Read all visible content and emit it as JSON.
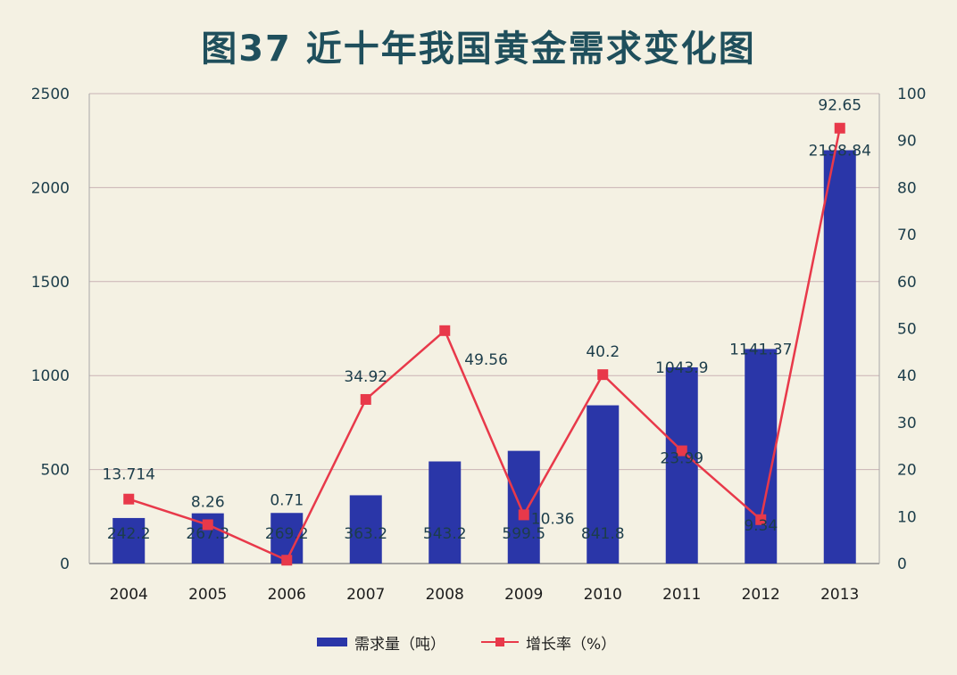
{
  "chart_data": {
    "type": "bar",
    "title": "图37  近十年我国黄金需求变化图",
    "categories": [
      "2004",
      "2005",
      "2006",
      "2007",
      "2008",
      "2009",
      "2010",
      "2011",
      "2012",
      "2013"
    ],
    "series": [
      {
        "name": "需求量（吨）",
        "type": "bar",
        "axis": "left",
        "values": [
          242.2,
          267.3,
          269.2,
          363.2,
          543.2,
          599.5,
          841.8,
          1043.9,
          1141.37,
          2198.84
        ],
        "labels": [
          "242.2",
          "267.3",
          "269.2",
          "363.2",
          "543.2",
          "599.5",
          "841.8",
          "1043.9",
          "1141.37",
          "2198.84"
        ],
        "color": "#2a36a8"
      },
      {
        "name": "增长率（%）",
        "type": "line",
        "axis": "right",
        "values": [
          13.714,
          8.26,
          0.71,
          34.92,
          49.56,
          10.36,
          40.2,
          23.99,
          9.34,
          92.65
        ],
        "labels": [
          "13.714",
          "8.26",
          "0.71",
          "34.92",
          "49.56",
          "10.36",
          "40.2",
          "23.99",
          "9.34",
          "92.65"
        ],
        "color": "#e8394a"
      }
    ],
    "y_left": {
      "min": 0,
      "max": 2500,
      "ticks": [
        "0",
        "500",
        "1000",
        "1500",
        "2000",
        "2500"
      ]
    },
    "y_right": {
      "min": 0,
      "max": 100,
      "ticks": [
        "0",
        "10",
        "20",
        "30",
        "40",
        "50",
        "60",
        "70",
        "80",
        "90",
        "100"
      ]
    },
    "grid": true,
    "legend_position": "bottom"
  }
}
